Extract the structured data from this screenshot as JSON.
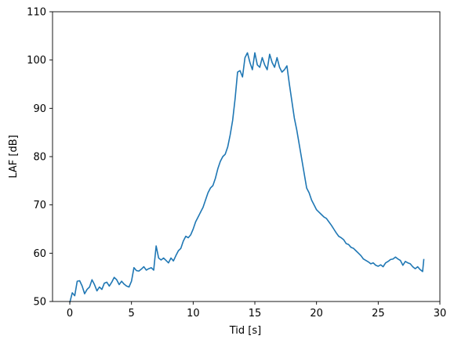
{
  "chart_data": {
    "type": "line",
    "title": "",
    "xlabel": "Tid [s]",
    "ylabel": "LAF [dB]",
    "xlim": [
      -1.4,
      30.0
    ],
    "ylim": [
      50,
      110
    ],
    "xticks": [
      0,
      5,
      10,
      15,
      20,
      25,
      30
    ],
    "yticks": [
      50,
      60,
      70,
      80,
      90,
      100,
      110
    ],
    "xtick_labels": [
      "0",
      "5",
      "10",
      "15",
      "20",
      "25",
      "30"
    ],
    "ytick_labels": [
      "50",
      "60",
      "70",
      "80",
      "90",
      "100",
      "110"
    ],
    "grid": false,
    "legend": "none",
    "series": [
      {
        "color": "#1f77b4",
        "x": [
          0.0,
          0.2,
          0.4,
          0.6,
          0.8,
          1.0,
          1.2,
          1.4,
          1.6,
          1.8,
          2.0,
          2.2,
          2.4,
          2.6,
          2.8,
          3.0,
          3.2,
          3.4,
          3.6,
          3.8,
          4.0,
          4.2,
          4.4,
          4.6,
          4.8,
          5.0,
          5.2,
          5.4,
          5.6,
          5.8,
          6.0,
          6.2,
          6.4,
          6.6,
          6.8,
          7.0,
          7.2,
          7.4,
          7.6,
          7.8,
          8.0,
          8.2,
          8.4,
          8.6,
          8.8,
          9.0,
          9.2,
          9.4,
          9.6,
          9.8,
          10.0,
          10.2,
          10.4,
          10.6,
          10.8,
          11.0,
          11.2,
          11.4,
          11.6,
          11.8,
          12.0,
          12.2,
          12.4,
          12.6,
          12.8,
          13.0,
          13.2,
          13.4,
          13.6,
          13.8,
          14.0,
          14.2,
          14.4,
          14.6,
          14.8,
          15.0,
          15.2,
          15.4,
          15.6,
          15.8,
          16.0,
          16.2,
          16.4,
          16.6,
          16.8,
          17.0,
          17.2,
          17.4,
          17.6,
          17.8,
          18.0,
          18.2,
          18.4,
          18.6,
          18.8,
          19.0,
          19.2,
          19.4,
          19.6,
          19.8,
          20.0,
          20.2,
          20.4,
          20.6,
          20.8,
          21.0,
          21.2,
          21.4,
          21.6,
          21.8,
          22.0,
          22.2,
          22.4,
          22.6,
          22.8,
          23.0,
          23.2,
          23.4,
          23.6,
          23.8,
          24.0,
          24.2,
          24.4,
          24.6,
          24.8,
          25.0,
          25.2,
          25.4,
          25.6,
          25.8,
          26.0,
          26.2,
          26.4,
          26.6,
          26.8,
          27.0,
          27.2,
          27.4,
          27.6,
          27.8,
          28.0,
          28.2,
          28.4,
          28.6,
          28.7
        ],
        "y": [
          49.8,
          51.8,
          51.2,
          54.2,
          54.3,
          53.2,
          51.6,
          52.5,
          53.0,
          54.5,
          53.5,
          52.2,
          53.0,
          52.5,
          53.8,
          54.0,
          53.2,
          54.0,
          55.0,
          54.5,
          53.5,
          54.2,
          53.6,
          53.2,
          53.0,
          54.2,
          57.0,
          56.4,
          56.3,
          56.7,
          57.2,
          56.5,
          56.8,
          57.0,
          56.5,
          61.5,
          59.0,
          58.6,
          59.0,
          58.5,
          58.0,
          59.0,
          58.4,
          59.5,
          60.5,
          61.0,
          62.5,
          63.5,
          63.2,
          63.8,
          65.0,
          66.5,
          67.5,
          68.5,
          69.5,
          71.0,
          72.5,
          73.5,
          74.0,
          75.5,
          77.5,
          79.0,
          80.0,
          80.5,
          82.0,
          84.5,
          87.5,
          92.0,
          97.5,
          97.8,
          96.5,
          100.5,
          101.5,
          99.5,
          98.0,
          101.5,
          99.0,
          98.5,
          100.5,
          99.0,
          98.0,
          101.2,
          99.5,
          98.5,
          100.5,
          98.5,
          97.5,
          98.0,
          98.8,
          95.0,
          91.5,
          88.0,
          85.5,
          82.5,
          79.5,
          76.5,
          73.5,
          72.5,
          71.0,
          70.0,
          69.0,
          68.5,
          68.0,
          67.5,
          67.2,
          66.5,
          65.8,
          65.0,
          64.2,
          63.5,
          63.2,
          62.8,
          62.0,
          61.8,
          61.2,
          61.0,
          60.5,
          60.0,
          59.5,
          58.8,
          58.5,
          58.2,
          57.8,
          58.0,
          57.5,
          57.3,
          57.6,
          57.2,
          58.0,
          58.3,
          58.7,
          58.8,
          59.2,
          58.8,
          58.5,
          57.5,
          58.3,
          58.0,
          57.8,
          57.2,
          56.8,
          57.2,
          56.6,
          56.2,
          58.8
        ]
      }
    ]
  }
}
